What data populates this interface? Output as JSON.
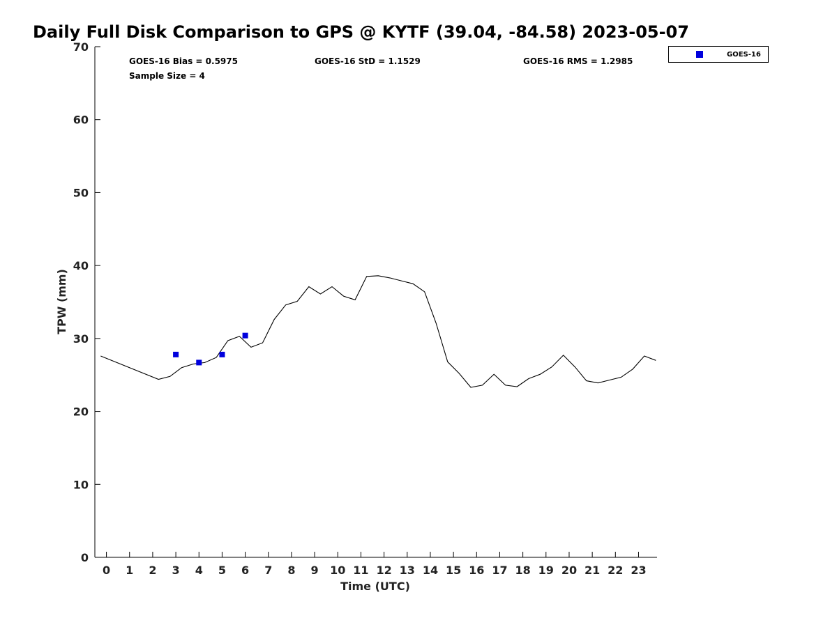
{
  "chart_data": {
    "type": "line",
    "title": "Daily Full Disk Comparison to GPS @ KYTF (39.04, -84.58) 2023-05-07",
    "xlabel": "Time (UTC)",
    "ylabel": "TPW (mm)",
    "xlim": [
      -0.5,
      23.8
    ],
    "ylim": [
      0,
      70
    ],
    "x_ticks": [
      "0",
      "1",
      "2",
      "3",
      "4",
      "5",
      "6",
      "7",
      "8",
      "9",
      "10",
      "11",
      "12",
      "13",
      "14",
      "15",
      "16",
      "17",
      "18",
      "19",
      "20",
      "21",
      "22",
      "23"
    ],
    "y_ticks": [
      "0",
      "10",
      "20",
      "30",
      "40",
      "50",
      "60",
      "70"
    ],
    "grid": false,
    "legend_position": "top-right",
    "stats": {
      "bias": "GOES-16 Bias = 0.5975",
      "std": "GOES-16 StD = 1.1529",
      "rms": "GOES-16 RMS = 1.2985",
      "sample": "Sample Size = 4"
    },
    "series": [
      {
        "kind": "line",
        "color": "#000000",
        "x": [
          -0.25,
          2.25,
          2.75,
          3.25,
          3.75,
          4.25,
          4.75,
          5.25,
          5.75,
          6.25,
          6.75,
          7.25,
          7.75,
          8.25,
          8.75,
          9.25,
          9.75,
          10.25,
          10.75,
          11.25,
          11.75,
          12.25,
          12.75,
          13.25,
          13.75,
          14.25,
          14.75,
          15.25,
          15.75,
          16.25,
          16.75,
          17.25,
          17.75,
          18.25,
          18.75,
          19.25,
          19.75,
          20.25,
          20.75,
          21.25,
          21.75,
          22.25,
          22.75,
          23.25,
          23.75
        ],
        "y": [
          27.6,
          24.4,
          24.8,
          26.0,
          26.5,
          26.7,
          27.4,
          29.7,
          30.3,
          28.8,
          29.4,
          32.6,
          34.6,
          35.1,
          37.1,
          36.1,
          37.1,
          35.8,
          35.3,
          38.5,
          38.6,
          38.3,
          37.9,
          37.5,
          36.4,
          32.1,
          26.8,
          25.2,
          23.3,
          23.6,
          25.1,
          23.6,
          23.4,
          24.5,
          25.1,
          26.1,
          27.7,
          26.1,
          24.2,
          23.9,
          24.3,
          24.7,
          25.8,
          27.6,
          27.0
        ]
      },
      {
        "kind": "scatter",
        "name": "GOES-16",
        "color": "#0000dd",
        "x": [
          3,
          4,
          5,
          6
        ],
        "y": [
          27.8,
          26.7,
          27.8,
          30.4
        ]
      }
    ]
  }
}
